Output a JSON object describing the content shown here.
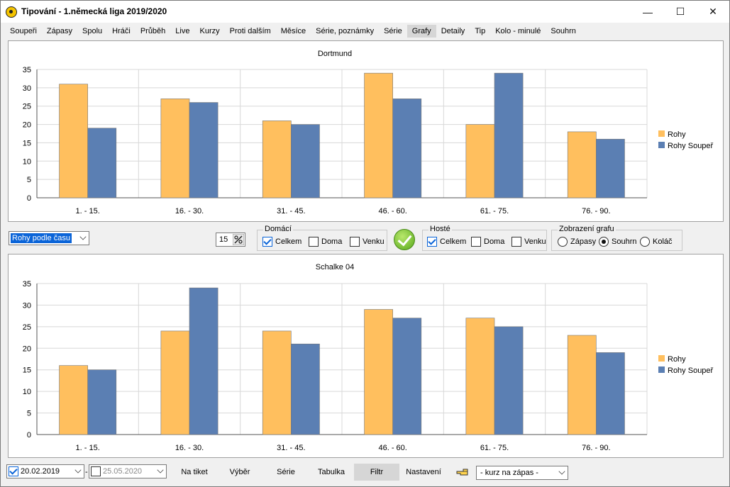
{
  "window": {
    "title": "Tipování - 1.německá liga 2019/2020",
    "minimize": "—",
    "maximize": "☐",
    "close": "✕"
  },
  "tabs": [
    "Soupeři",
    "Zápasy",
    "Spolu",
    "Hráči",
    "Průběh",
    "Live",
    "Kurzy",
    "Proti dalším",
    "Měsíce",
    "Série, poznámky",
    "Série",
    "Grafy",
    "Detaily",
    "Tip",
    "Kolo - minulé",
    "Souhrn"
  ],
  "active_tab": "Grafy",
  "colors": {
    "series1": "#ffbf5e",
    "series2": "#5b7fb3",
    "accent": "#0a64d8"
  },
  "chart_data": [
    {
      "type": "bar",
      "title": "Dortmund",
      "categories": [
        "1. - 15.",
        "16. - 30.",
        "31. - 45.",
        "46. - 60.",
        "61. - 75.",
        "76. - 90."
      ],
      "series": [
        {
          "name": "Rohy",
          "values": [
            31,
            27,
            21,
            34,
            20,
            18
          ]
        },
        {
          "name": "Rohy Soupeř",
          "values": [
            19,
            26,
            20,
            27,
            34,
            16
          ]
        }
      ],
      "yticks": [
        "0",
        "5",
        "10",
        "15",
        "20",
        "25",
        "30",
        "35"
      ],
      "ylim": [
        0,
        35
      ],
      "grid": true,
      "legend": "right"
    },
    {
      "type": "bar",
      "title": "Schalke 04",
      "categories": [
        "1. - 15.",
        "16. - 30.",
        "31. - 45.",
        "46. - 60.",
        "61. - 75.",
        "76. - 90."
      ],
      "series": [
        {
          "name": "Rohy",
          "values": [
            16,
            24,
            24,
            29,
            27,
            23
          ]
        },
        {
          "name": "Rohy Soupeř",
          "values": [
            15,
            34,
            21,
            27,
            25,
            19
          ]
        }
      ],
      "yticks": [
        "0",
        "5",
        "10",
        "15",
        "20",
        "25",
        "30",
        "35"
      ],
      "ylim": [
        0,
        35
      ],
      "grid": true,
      "legend": "right"
    }
  ],
  "controls": {
    "type_select": "Rohy podle času",
    "spin_value": "15",
    "spin_icon": "percent-icon",
    "home_group": {
      "title": "Domácí",
      "celkem": "Celkem",
      "doma": "Doma",
      "venku": "Venku"
    },
    "away_group": {
      "title": "Hosté",
      "celkem": "Celkem",
      "doma": "Doma",
      "venku": "Venku"
    },
    "display_group": {
      "title": "Zobrazení grafu",
      "zapasy": "Zápasy",
      "souhrn": "Souhrn",
      "kolac": "Koláč"
    }
  },
  "bottom": {
    "date_from": "20.02.2019",
    "date_to": "25.05.2020",
    "sep": "-",
    "btn_ticket": "Na tiket",
    "btn_vyber": "Výběr",
    "btn_serie": "Série",
    "btn_tabulka": "Tabulka",
    "btn_filtr": "Filtr",
    "btn_nastaveni": "Nastavení",
    "odds_select": "- kurz na zápas -"
  }
}
